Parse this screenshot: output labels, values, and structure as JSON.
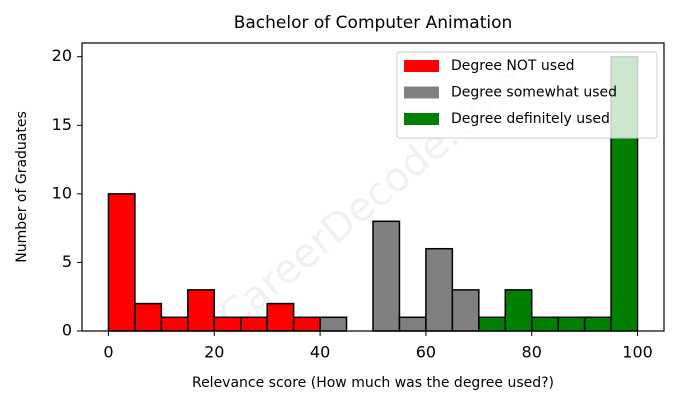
{
  "chart_data": {
    "type": "histogram",
    "title": "Bachelor of Computer Animation",
    "xlabel": "Relevance score (How much was the degree used?)",
    "ylabel": "Number of Graduates",
    "watermark": "CareerDecode.com",
    "series": [
      {
        "name": "Degree NOT used",
        "color": "#ff0000",
        "bins": [
          0,
          5,
          10,
          15,
          20,
          25,
          30,
          35,
          40
        ],
        "values": [
          10,
          2,
          1,
          3,
          1,
          1,
          2,
          1
        ]
      },
      {
        "name": "Degree somewhat used",
        "color": "#808080",
        "bins": [
          40,
          45,
          50,
          55,
          60,
          65,
          70
        ],
        "values": [
          1,
          0,
          8,
          1,
          6,
          3
        ]
      },
      {
        "name": "Degree definitely used",
        "color": "#008000",
        "bins": [
          70,
          75,
          80,
          85,
          90,
          95,
          100
        ],
        "values": [
          1,
          3,
          1,
          1,
          1,
          20
        ]
      }
    ],
    "xlim": [
      -5,
      105
    ],
    "ylim": [
      0,
      21
    ],
    "xticks": [
      0,
      20,
      40,
      60,
      80,
      100
    ],
    "yticks": [
      0,
      5,
      10,
      15,
      20
    ],
    "legend": "upper right"
  }
}
